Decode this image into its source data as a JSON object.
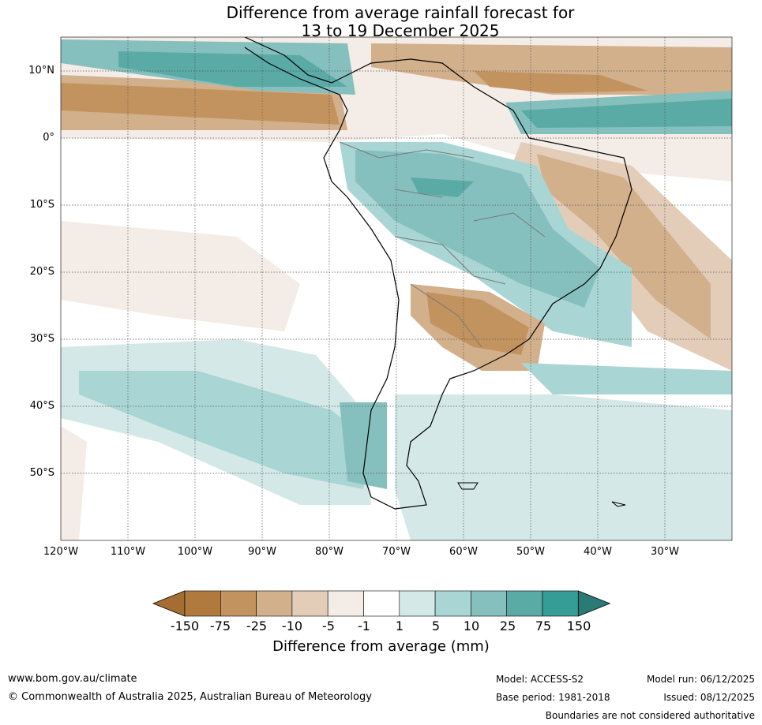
{
  "title_line1": "Difference from average rainfall forecast for",
  "title_line2": "13 to 19 December 2025",
  "lat_labels": [
    "10°N",
    "0°",
    "10°S",
    "20°S",
    "30°S",
    "40°S",
    "50°S"
  ],
  "lon_labels": [
    "120°W",
    "110°W",
    "100°W",
    "90°W",
    "80°W",
    "70°W",
    "60°W",
    "50°W",
    "40°W",
    "30°W"
  ],
  "colorbar": {
    "ticks": [
      "-150",
      "-75",
      "-25",
      "-10",
      "-5",
      "-1",
      "1",
      "5",
      "10",
      "25",
      "75",
      "150"
    ],
    "colors": [
      "#a66d33",
      "#b07a3e",
      "#c3935f",
      "#d2b08c",
      "#e3cdb9",
      "#f4ece6",
      "#ffffff",
      "#d4e8e7",
      "#a9d6d4",
      "#86c0be",
      "#5aaaa6",
      "#359c96",
      "#2a7a76"
    ],
    "title": "Difference from average (mm)"
  },
  "footer": {
    "url": "www.bom.gov.au/climate",
    "copyright": "© Commonwealth of Australia 2025, Australian Bureau of Meteorology",
    "model": "Model: ACCESS-S2",
    "base_period": "Base period: 1981-2018",
    "model_run": "Model run: 06/12/2025",
    "issued": "Issued: 08/12/2025",
    "disclaimer": "Boundaries are not considered authoritative"
  }
}
